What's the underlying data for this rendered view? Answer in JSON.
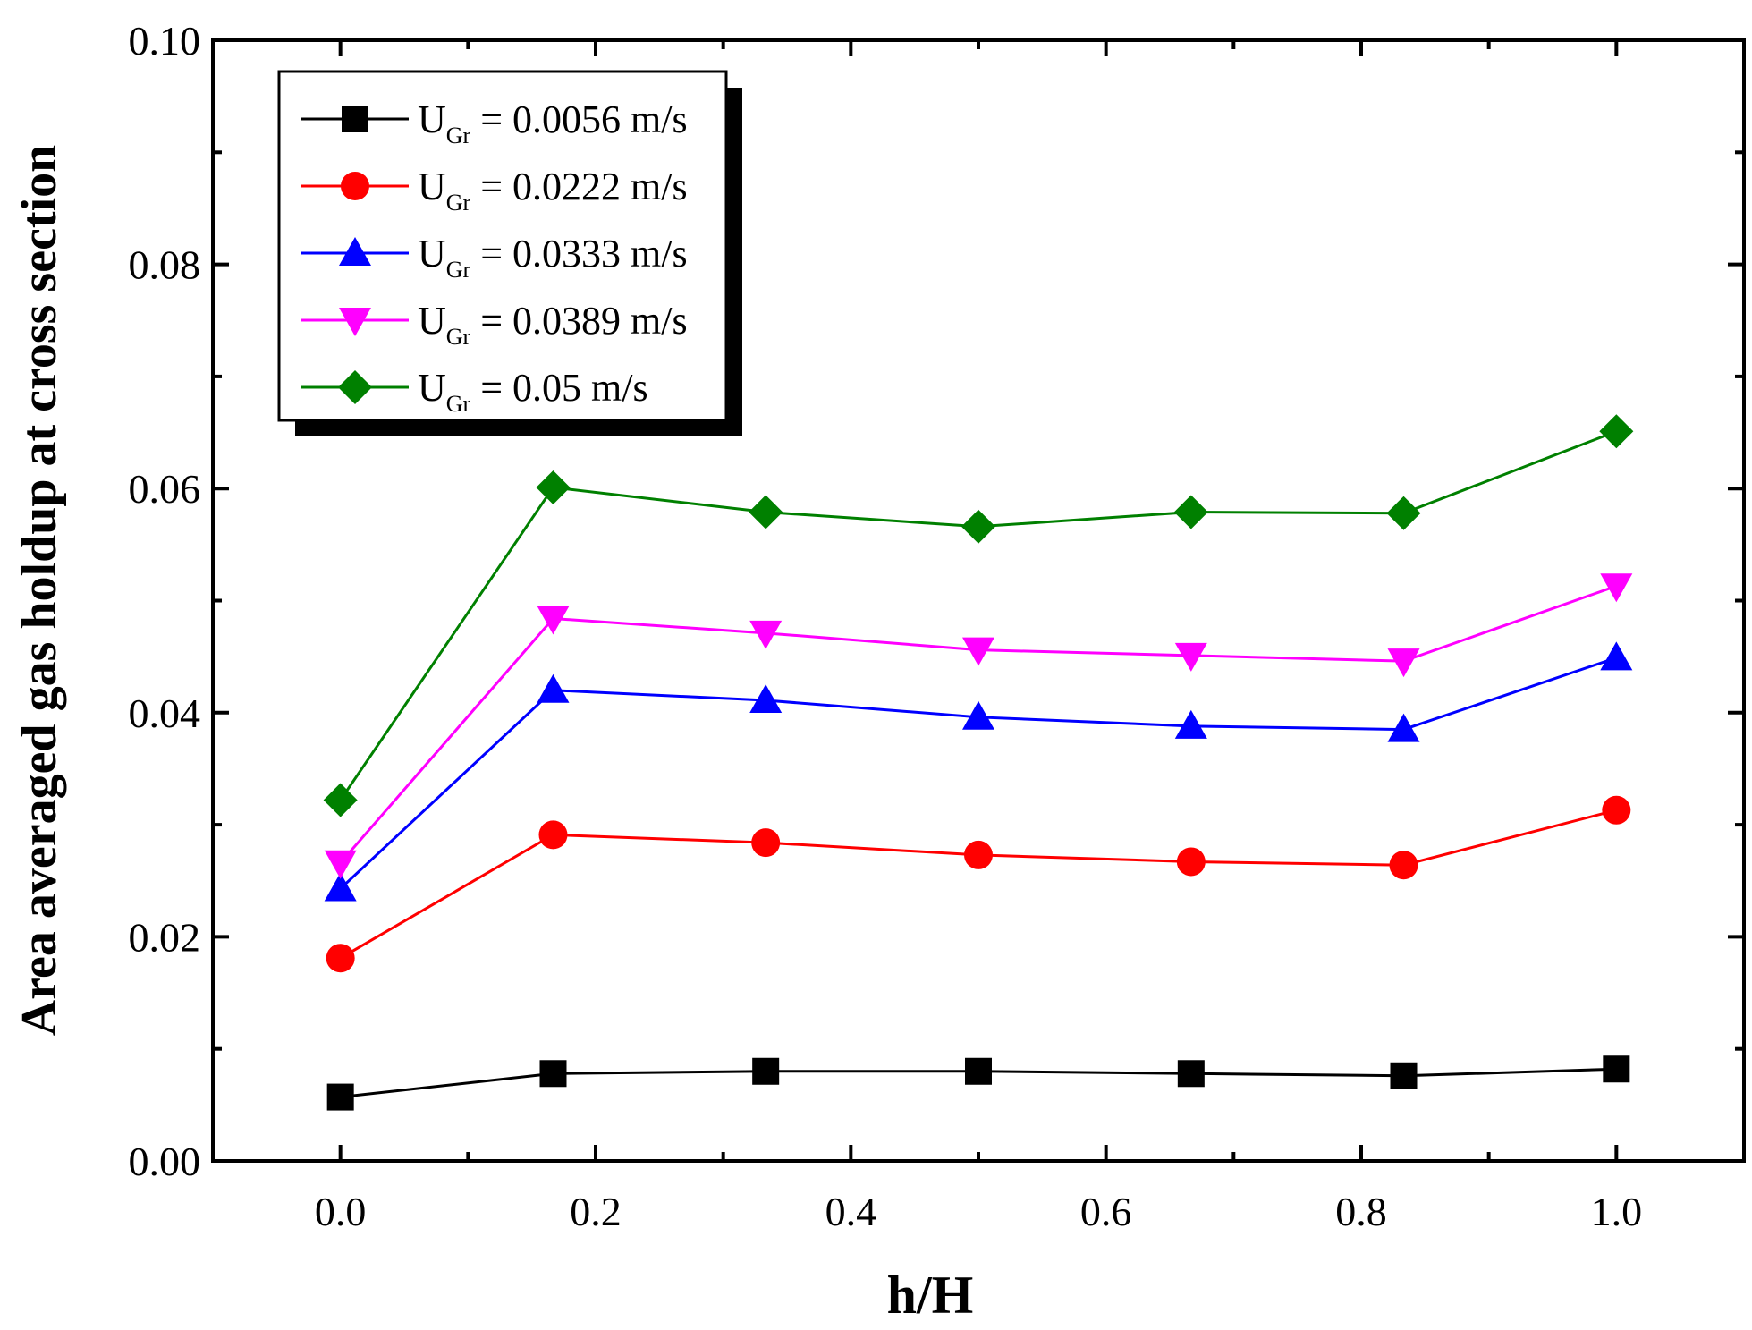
{
  "chart_data": {
    "type": "line",
    "title": "",
    "xlabel": "h/H",
    "ylabel": "Area averaged gas holdup at cross section",
    "xlim": [
      -0.1,
      1.1
    ],
    "ylim": [
      0.0,
      0.1
    ],
    "x_ticks": [
      0.0,
      0.2,
      0.4,
      0.6,
      0.8,
      1.0
    ],
    "x_tick_labels": [
      "0.0",
      "0.2",
      "0.4",
      "0.6",
      "0.8",
      "1.0"
    ],
    "y_ticks": [
      0.0,
      0.02,
      0.04,
      0.06,
      0.08,
      0.1
    ],
    "y_tick_labels": [
      "0.00",
      "0.02",
      "0.04",
      "0.06",
      "0.08",
      "0.10"
    ],
    "grid": false,
    "legend_position": "top-left",
    "x": [
      0.0,
      0.1667,
      0.3333,
      0.5,
      0.6667,
      0.8333,
      1.0
    ],
    "series": [
      {
        "name": "U_Gr = 0.0056 m/s",
        "legend_main": "U",
        "legend_sub": "Gr",
        "legend_rest": " = 0.0056 m/s",
        "color": "#000000",
        "marker": "square",
        "values": [
          0.0057,
          0.0078,
          0.008,
          0.008,
          0.0078,
          0.0076,
          0.0082
        ]
      },
      {
        "name": "U_Gr = 0.0222 m/s",
        "legend_main": "U",
        "legend_sub": "Gr",
        "legend_rest": " = 0.0222 m/s",
        "color": "#ff0000",
        "marker": "circle",
        "values": [
          0.0181,
          0.0291,
          0.0284,
          0.0273,
          0.0267,
          0.0264,
          0.0313
        ]
      },
      {
        "name": "U_Gr = 0.0333 m/s",
        "legend_main": "U",
        "legend_sub": "Gr",
        "legend_rest": " = 0.0333 m/s",
        "color": "#0000ff",
        "marker": "triangle-up",
        "values": [
          0.0243,
          0.042,
          0.0411,
          0.0396,
          0.0388,
          0.0385,
          0.0449
        ]
      },
      {
        "name": "U_Gr = 0.0389 m/s",
        "legend_main": "U",
        "legend_sub": "Gr",
        "legend_rest": " = 0.0389 m/s",
        "color": "#ff00ff",
        "marker": "triangle-down",
        "values": [
          0.0266,
          0.0484,
          0.0471,
          0.0456,
          0.0451,
          0.0446,
          0.0513
        ]
      },
      {
        "name": "U_Gr = 0.05 m/s",
        "legend_main": "U",
        "legend_sub": "Gr",
        "legend_rest": " = 0.05 m/s",
        "color": "#008000",
        "marker": "diamond",
        "values": [
          0.0322,
          0.0601,
          0.0579,
          0.0566,
          0.0579,
          0.0578,
          0.0651
        ]
      }
    ]
  }
}
